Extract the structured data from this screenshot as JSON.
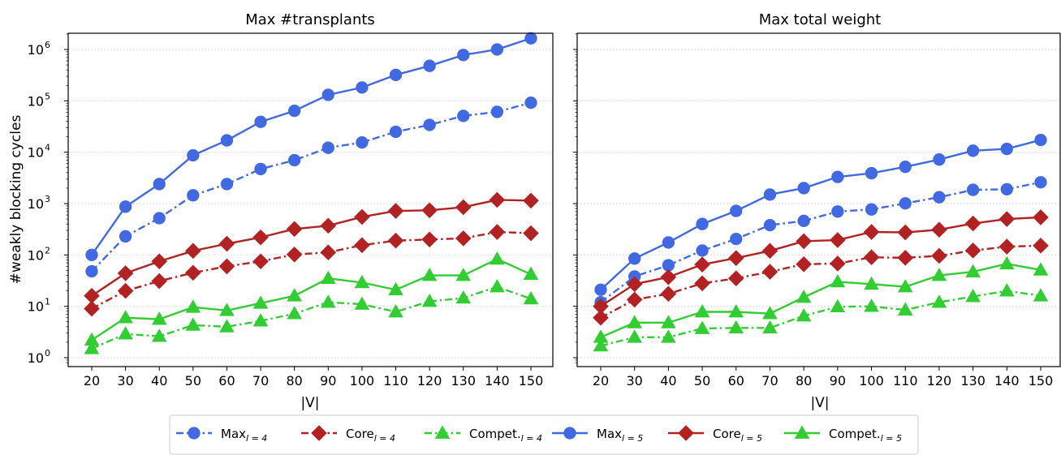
{
  "chart_data": [
    {
      "type": "line",
      "title": "Max #transplants",
      "xlabel": "|V|",
      "ylabel": "#weakly blocking cycles",
      "yscale": "log",
      "ylim": [
        0.7,
        3500000
      ],
      "x": [
        20,
        30,
        40,
        50,
        60,
        70,
        80,
        90,
        100,
        110,
        120,
        130,
        140,
        150
      ],
      "x_ticks": [
        "20",
        "30",
        "40",
        "50",
        "60",
        "70",
        "80",
        "90",
        "100",
        "110",
        "120",
        "130",
        "140",
        "150"
      ],
      "y_ticks": [
        {
          "value": 1,
          "base": "10",
          "exp": "0"
        },
        {
          "value": 10,
          "base": "10",
          "exp": "1"
        },
        {
          "value": 100,
          "base": "10",
          "exp": "2"
        },
        {
          "value": 1000,
          "base": "10",
          "exp": "3"
        },
        {
          "value": 10000,
          "base": "10",
          "exp": "4"
        },
        {
          "value": 100000,
          "base": "10",
          "exp": "5"
        },
        {
          "value": 1000000,
          "base": "10",
          "exp": "6"
        }
      ],
      "grid": "horizontal",
      "series": [
        {
          "key": "max_l4",
          "values": [
            48,
            230,
            520,
            1450,
            2400,
            4700,
            7000,
            12200,
            15500,
            25000,
            34000,
            51000,
            61000,
            92000
          ]
        },
        {
          "key": "core_l4",
          "values": [
            9,
            20,
            31,
            45,
            60,
            75,
            102,
            112,
            155,
            190,
            200,
            210,
            280,
            265
          ]
        },
        {
          "key": "compet_l4",
          "values": [
            1.5,
            2.9,
            2.6,
            4.3,
            4.0,
            5.2,
            7.2,
            12.0,
            11.0,
            7.8,
            12.5,
            14.5,
            24.0,
            14.0
          ]
        },
        {
          "key": "max_l5",
          "values": [
            100,
            870,
            2400,
            8700,
            17000,
            39000,
            64000,
            131000,
            182000,
            320000,
            480000,
            780000,
            1000000,
            1650000
          ]
        },
        {
          "key": "core_l5",
          "values": [
            16,
            44,
            75,
            120,
            165,
            220,
            320,
            370,
            550,
            720,
            740,
            850,
            1180,
            1140
          ]
        },
        {
          "key": "compet_l5",
          "values": [
            2.2,
            6.0,
            5.6,
            9.6,
            8.3,
            11.5,
            16.0,
            35.0,
            29.0,
            21.0,
            40.0,
            40.0,
            83.0,
            42.0
          ]
        }
      ]
    },
    {
      "type": "line",
      "title": "Max total weight",
      "xlabel": "|V|",
      "ylabel": "",
      "yscale": "log",
      "ylim": [
        0.7,
        3500000
      ],
      "x": [
        20,
        30,
        40,
        50,
        60,
        70,
        80,
        90,
        100,
        110,
        120,
        130,
        140,
        150
      ],
      "x_ticks": [
        "20",
        "30",
        "40",
        "50",
        "60",
        "70",
        "80",
        "90",
        "100",
        "110",
        "120",
        "130",
        "140",
        "150"
      ],
      "y_ticks": [],
      "grid": "horizontal",
      "series": [
        {
          "key": "max_l4",
          "values": [
            12,
            38,
            63,
            122,
            205,
            380,
            460,
            700,
            770,
            1010,
            1330,
            1850,
            1900,
            2600
          ]
        },
        {
          "key": "core_l4",
          "values": [
            6,
            13.5,
            17.5,
            28,
            35,
            47,
            66,
            68,
            90,
            88,
            96,
            122,
            145,
            152
          ]
        },
        {
          "key": "compet_l4",
          "values": [
            1.7,
            2.5,
            2.5,
            3.7,
            3.8,
            3.8,
            6.5,
            9.8,
            10.0,
            8.5,
            12.0,
            15.5,
            20.0,
            16.0
          ]
        },
        {
          "key": "max_l5",
          "values": [
            21,
            85,
            175,
            400,
            720,
            1500,
            2000,
            3300,
            3900,
            5200,
            7200,
            10700,
            11600,
            17300
          ]
        },
        {
          "key": "core_l5",
          "values": [
            10,
            27,
            37,
            65,
            87,
            120,
            185,
            195,
            280,
            275,
            310,
            410,
            500,
            540
          ]
        },
        {
          "key": "compet_l5",
          "values": [
            2.5,
            4.8,
            4.8,
            7.8,
            7.8,
            7.2,
            15.0,
            30.0,
            27.0,
            24.0,
            40.0,
            47.0,
            67.0,
            51.0
          ]
        }
      ]
    }
  ],
  "legend": {
    "placement": "bottom-center",
    "entries": [
      {
        "key": "max_l4",
        "label": "Max",
        "sub": "l = 4",
        "color": "#4169e1",
        "marker": "circle",
        "dash": "dashdot"
      },
      {
        "key": "core_l4",
        "label": "Core",
        "sub": "l = 4",
        "color": "#b22222",
        "marker": "diamond",
        "dash": "dashdot"
      },
      {
        "key": "compet_l4",
        "label": "Compet.",
        "sub": "l = 4",
        "color": "#32cd32",
        "marker": "triangle",
        "dash": "dashdot"
      },
      {
        "key": "max_l5",
        "label": "Max",
        "sub": "l = 5",
        "color": "#4169e1",
        "marker": "circle",
        "dash": "solid"
      },
      {
        "key": "core_l5",
        "label": "Core",
        "sub": "l = 5",
        "color": "#b22222",
        "marker": "diamond",
        "dash": "solid"
      },
      {
        "key": "compet_l5",
        "label": "Compet.",
        "sub": "l = 5",
        "color": "#32cd32",
        "marker": "triangle",
        "dash": "solid"
      }
    ]
  }
}
